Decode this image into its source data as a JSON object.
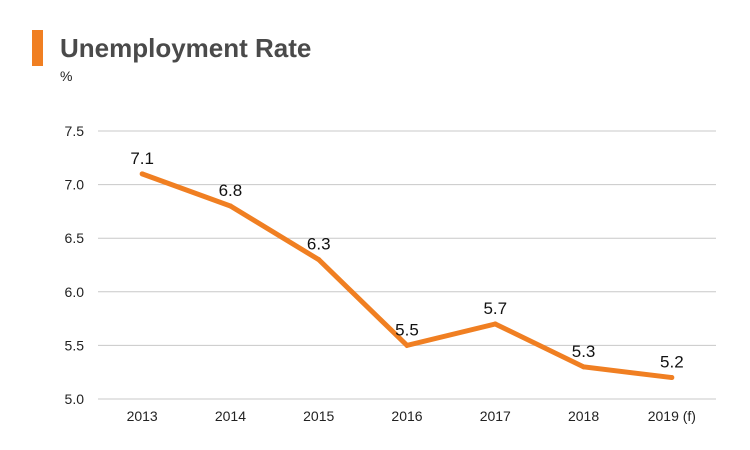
{
  "header": {
    "title": "Unemployment Rate",
    "unit": "%"
  },
  "colors": {
    "accent": "#f07f22",
    "line": "#f07f22",
    "grid": "#c8c8c8",
    "title": "#4a4a4a",
    "text": "#222222"
  },
  "chart_data": {
    "type": "line",
    "title": "Unemployment Rate",
    "xlabel": "",
    "ylabel": "%",
    "categories": [
      "2013",
      "2014",
      "2015",
      "2016",
      "2017",
      "2018",
      "2019 (f)"
    ],
    "series": [
      {
        "name": "Unemployment Rate",
        "values": [
          7.1,
          6.8,
          6.3,
          5.5,
          5.7,
          5.3,
          5.2
        ],
        "labels": [
          "7.1",
          "6.8",
          "6.3",
          "5.5",
          "5.7",
          "5.3",
          "5.2"
        ]
      }
    ],
    "yticks": [
      "5.0",
      "5.5",
      "6.0",
      "6.5",
      "7.0",
      "7.5"
    ],
    "ylim": [
      5.0,
      7.5
    ],
    "grid": true,
    "legend": "none"
  }
}
